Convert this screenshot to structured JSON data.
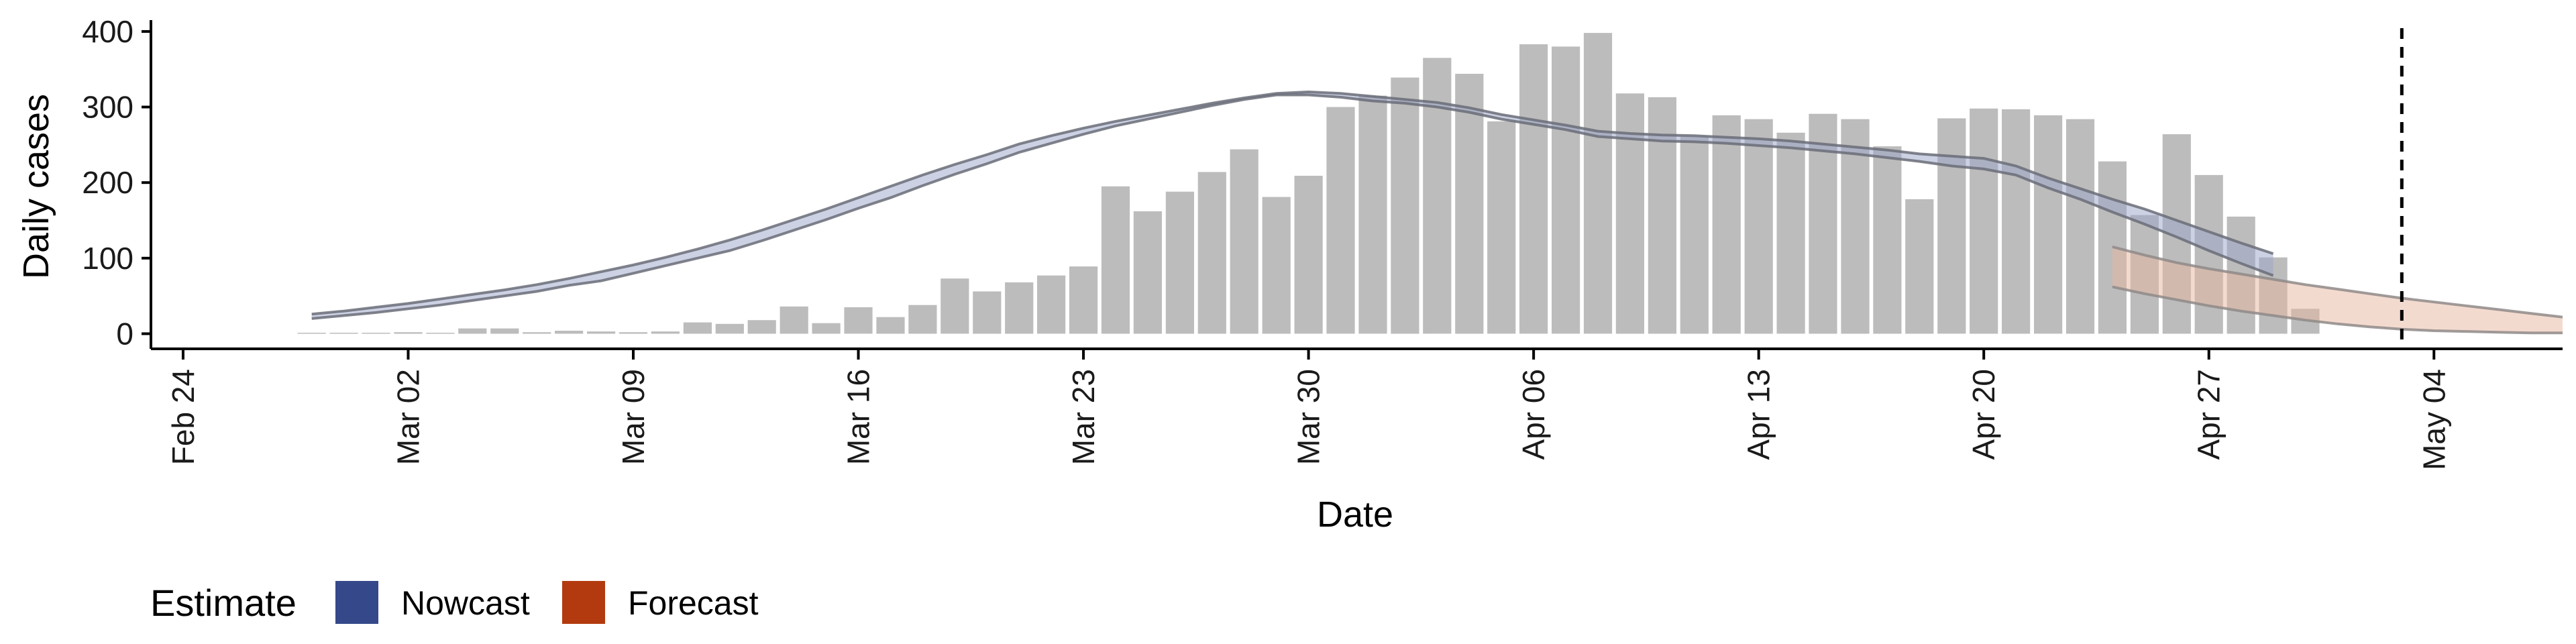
{
  "chart_data": {
    "type": "bar",
    "xlabel": "Date",
    "ylabel": "Daily cases",
    "x_tick_labels": [
      "Feb 24",
      "Mar 02",
      "Mar 09",
      "Mar 16",
      "Mar 23",
      "Mar 30",
      "Apr 06",
      "Apr 13",
      "Apr 20",
      "Apr 27",
      "May 04"
    ],
    "x_tick_dates": [
      "2020-02-24",
      "2020-03-02",
      "2020-03-09",
      "2020-03-16",
      "2020-03-23",
      "2020-03-30",
      "2020-04-06",
      "2020-04-13",
      "2020-04-20",
      "2020-04-27",
      "2020-05-04"
    ],
    "y_ticks": [
      0,
      100,
      200,
      300,
      400
    ],
    "xlim": [
      "2020-02-23",
      "2020-05-08"
    ],
    "ylim": [
      -20,
      415
    ],
    "grid": false,
    "legend": {
      "position": "bottom-left",
      "title": "Estimate",
      "items": [
        {
          "label": "Nowcast",
          "color": "#35498a"
        },
        {
          "label": "Forecast",
          "color": "#b33a0f"
        }
      ]
    },
    "reference_line": {
      "date": "2020-05-03",
      "style": "dashed"
    },
    "bars": {
      "color": "#bcbcbc",
      "start_date": "2020-02-28",
      "values": [
        0,
        0,
        0,
        2,
        0,
        7,
        7,
        2,
        4,
        3,
        2,
        3,
        15,
        13,
        18,
        36,
        14,
        35,
        22,
        38,
        73,
        56,
        68,
        77,
        89,
        195,
        162,
        188,
        214,
        244,
        181,
        209,
        300,
        315,
        339,
        365,
        344,
        281,
        383,
        380,
        398,
        318,
        313,
        261,
        289,
        284,
        266,
        291,
        284,
        248,
        178,
        285,
        298,
        297,
        289,
        284,
        228,
        157,
        264,
        210,
        155,
        101,
        33
      ]
    },
    "nowcast_band": {
      "start_date": "2020-02-28",
      "lower": [
        20,
        24,
        28,
        33,
        38,
        44,
        50,
        56,
        64,
        70,
        80,
        90,
        100,
        110,
        123,
        137,
        151,
        166,
        180,
        196,
        211,
        225,
        240,
        252,
        264,
        275,
        284,
        293,
        302,
        310,
        316,
        316,
        313,
        308,
        305,
        300,
        293,
        284,
        277,
        270,
        261,
        258,
        255,
        254,
        252,
        249,
        246,
        242,
        238,
        233,
        228,
        222,
        218,
        210,
        193,
        178,
        161,
        145,
        128,
        110,
        93,
        77
      ],
      "upper": [
        26,
        30,
        35,
        40,
        46,
        52,
        58,
        65,
        73,
        82,
        91,
        101,
        112,
        124,
        137,
        151,
        165,
        180,
        195,
        210,
        224,
        237,
        251,
        262,
        272,
        281,
        289,
        297,
        305,
        312,
        318,
        320,
        318,
        314,
        310,
        306,
        299,
        290,
        283,
        276,
        268,
        265,
        263,
        262,
        260,
        258,
        255,
        251,
        247,
        243,
        238,
        235,
        232,
        222,
        206,
        192,
        178,
        165,
        150,
        135,
        120,
        106
      ]
    },
    "forecast_band": {
      "start_date": "2020-04-24",
      "lower": [
        62,
        53,
        45,
        37,
        30,
        24,
        18,
        13,
        9,
        6,
        4,
        3,
        2,
        1,
        1
      ],
      "upper": [
        115,
        104,
        94,
        86,
        79,
        72,
        65,
        59,
        53,
        47,
        42,
        37,
        32,
        27,
        22
      ]
    }
  }
}
